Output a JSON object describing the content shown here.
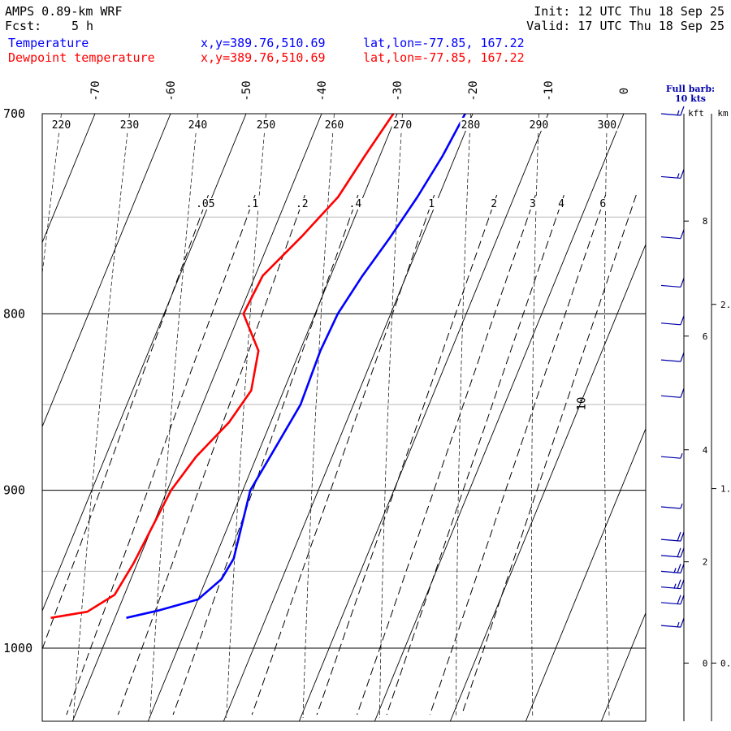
{
  "header": {
    "model": "AMPS 0.89-km WRF",
    "fcst_label": "Fcst:",
    "fcst_value": "5 h",
    "init": "Init: 12 UTC Thu 18 Sep 25",
    "valid": "Valid: 17 UTC Thu 18 Sep 25"
  },
  "legend": [
    {
      "label": "Temperature",
      "xy": "x,y=389.76,510.69",
      "latlon": "lat,lon=-77.85, 167.22",
      "color": "#0000ff"
    },
    {
      "label": "Dewpoint temperature",
      "xy": "x,y=389.76,510.69",
      "latlon": "lat,lon=-77.85, 167.22",
      "color": "#ff0000"
    }
  ],
  "barb_note": {
    "line1": "Full barb:",
    "line2": "10 kts",
    "color": "#0000aa"
  },
  "height_axis": {
    "left_unit": "kft",
    "right_unit": "km"
  },
  "chart_data": {
    "type": "line",
    "subtype": "skew-T log-p diagram",
    "pressure_range_hPa": [
      700,
      1040
    ],
    "pressure_ticks": [
      "700",
      "800",
      "900",
      "1000"
    ],
    "isotherm_labels_C": [
      "-70",
      "-60",
      "-50",
      "-40",
      "-30",
      "-20",
      "-10",
      "0",
      "10"
    ],
    "dry_adiabat_labels_K": [
      "220",
      "230",
      "240",
      "250",
      "260",
      "270",
      "280",
      "290",
      "300"
    ],
    "mixing_ratio_labels_gkg": [
      ".05",
      ".1",
      ".2",
      ".4",
      "1",
      "2",
      "3",
      "4",
      "6"
    ],
    "kft_ticks": [
      "0",
      "2",
      "4",
      "6",
      "8"
    ],
    "km_ticks": [
      "0.",
      "1.",
      "2."
    ],
    "series": [
      {
        "name": "Temperature",
        "color": "#0000ff",
        "p": [
          980,
          975,
          968,
          955,
          942,
          900,
          880,
          850,
          820,
          800,
          780,
          760,
          740,
          720,
          700
        ],
        "t": [
          -38.5,
          -34.5,
          -30.0,
          -28.0,
          -27.5,
          -29.0,
          -28.2,
          -27.0,
          -27.3,
          -27.0,
          -25.8,
          -24.2,
          -22.8,
          -21.7,
          -21.0
        ]
      },
      {
        "name": "Dewpoint temperature",
        "color": "#ff0000",
        "p": [
          980,
          976,
          965,
          945,
          900,
          880,
          860,
          842,
          820,
          800,
          780,
          760,
          740,
          720,
          700
        ],
        "t": [
          -48.5,
          -44.0,
          -41.3,
          -40.5,
          -39.5,
          -38.0,
          -35.5,
          -34.3,
          -35.5,
          -39.5,
          -39.0,
          -36.0,
          -33.3,
          -32.0,
          -30.5
        ]
      }
    ],
    "wind_barbs": [
      {
        "p": 700,
        "speed_kt": 15
      },
      {
        "p": 730,
        "speed_kt": 15
      },
      {
        "p": 760,
        "speed_kt": 12
      },
      {
        "p": 785,
        "speed_kt": 10
      },
      {
        "p": 805,
        "speed_kt": 10
      },
      {
        "p": 825,
        "speed_kt": 8
      },
      {
        "p": 845,
        "speed_kt": 10
      },
      {
        "p": 880,
        "speed_kt": 6
      },
      {
        "p": 910,
        "speed_kt": 4
      },
      {
        "p": 930,
        "speed_kt": 18
      },
      {
        "p": 940,
        "speed_kt": 22
      },
      {
        "p": 950,
        "speed_kt": 25
      },
      {
        "p": 960,
        "speed_kt": 25
      },
      {
        "p": 970,
        "speed_kt": 22
      },
      {
        "p": 985,
        "speed_kt": 15
      }
    ]
  }
}
